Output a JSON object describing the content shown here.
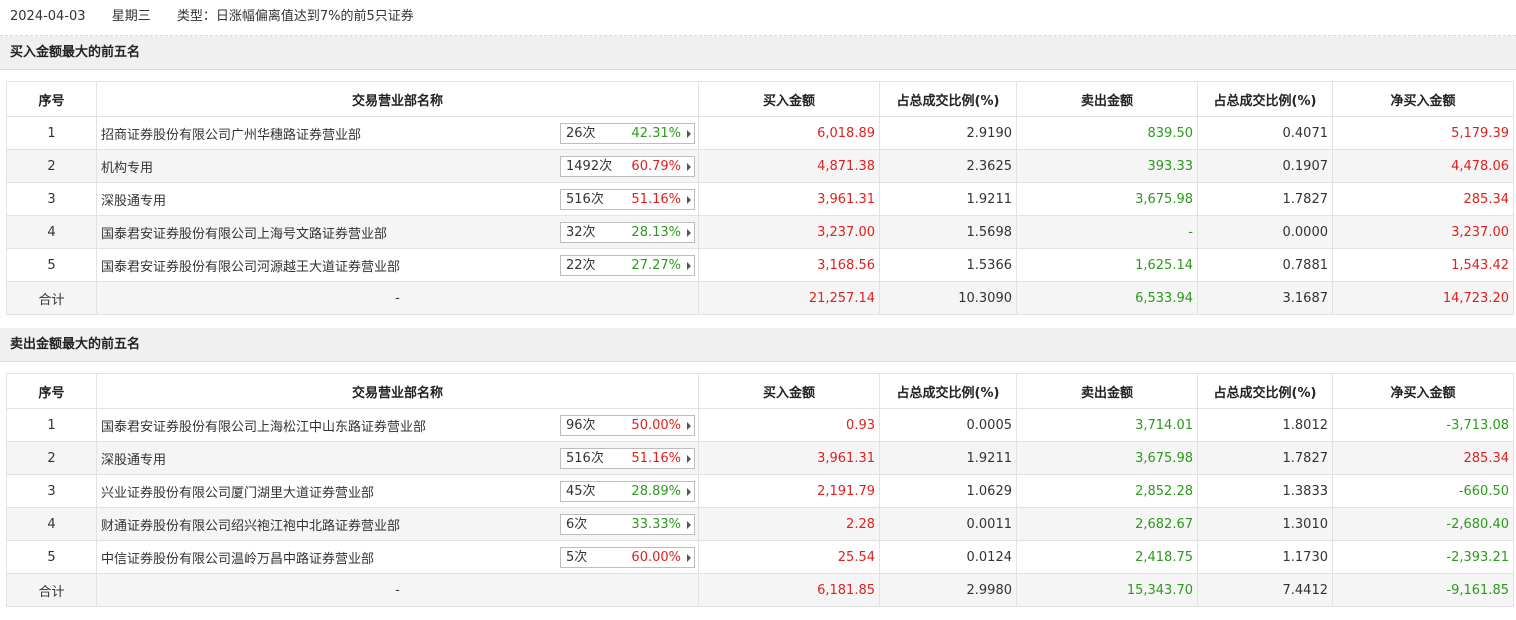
{
  "topbar": {
    "date": "2024-04-03",
    "weekday": "星期三",
    "type": "类型：日涨幅偏离值达到7%的前5只证券"
  },
  "colors": {
    "up": "#e0201f",
    "down": "#2c9a1c"
  },
  "headers": [
    "序号",
    "交易营业部名称",
    "买入金额",
    "占总成交比例(%)",
    "卖出金额",
    "占总成交比例(%)",
    "净买入金额"
  ],
  "buy_section": {
    "title": "买入金额最大的前五名",
    "rows": [
      {
        "idx": "1",
        "name": "招商证券股份有限公司广州华穗路证券营业部",
        "count": "26次",
        "pct": "42.31%",
        "pct_color": "green",
        "buy": "6,018.89",
        "buy_ratio": "2.9190",
        "sell": "839.50",
        "sell_ratio": "0.4071",
        "net": "5,179.39",
        "net_color": "red"
      },
      {
        "idx": "2",
        "name": "机构专用",
        "count": "1492次",
        "pct": "60.79%",
        "pct_color": "red",
        "buy": "4,871.38",
        "buy_ratio": "2.3625",
        "sell": "393.33",
        "sell_ratio": "0.1907",
        "net": "4,478.06",
        "net_color": "red"
      },
      {
        "idx": "3",
        "name": "深股通专用",
        "count": "516次",
        "pct": "51.16%",
        "pct_color": "red",
        "buy": "3,961.31",
        "buy_ratio": "1.9211",
        "sell": "3,675.98",
        "sell_ratio": "1.7827",
        "net": "285.34",
        "net_color": "red"
      },
      {
        "idx": "4",
        "name": "国泰君安证券股份有限公司上海号文路证券营业部",
        "count": "32次",
        "pct": "28.13%",
        "pct_color": "green",
        "buy": "3,237.00",
        "buy_ratio": "1.5698",
        "sell": "-",
        "sell_ratio": "0.0000",
        "net": "3,237.00",
        "net_color": "red"
      },
      {
        "idx": "5",
        "name": "国泰君安证券股份有限公司河源越王大道证券营业部",
        "count": "22次",
        "pct": "27.27%",
        "pct_color": "green",
        "buy": "3,168.56",
        "buy_ratio": "1.5366",
        "sell": "1,625.14",
        "sell_ratio": "0.7881",
        "net": "1,543.42",
        "net_color": "red"
      }
    ],
    "total": {
      "label": "合计",
      "name": "-",
      "buy": "21,257.14",
      "buy_ratio": "10.3090",
      "sell": "6,533.94",
      "sell_ratio": "3.1687",
      "net": "14,723.20",
      "net_color": "red"
    }
  },
  "sell_section": {
    "title": "卖出金额最大的前五名",
    "rows": [
      {
        "idx": "1",
        "name": "国泰君安证券股份有限公司上海松江中山东路证券营业部",
        "count": "96次",
        "pct": "50.00%",
        "pct_color": "red",
        "buy": "0.93",
        "buy_ratio": "0.0005",
        "sell": "3,714.01",
        "sell_ratio": "1.8012",
        "net": "-3,713.08",
        "net_color": "green"
      },
      {
        "idx": "2",
        "name": "深股通专用",
        "count": "516次",
        "pct": "51.16%",
        "pct_color": "red",
        "buy": "3,961.31",
        "buy_ratio": "1.9211",
        "sell": "3,675.98",
        "sell_ratio": "1.7827",
        "net": "285.34",
        "net_color": "red"
      },
      {
        "idx": "3",
        "name": "兴业证券股份有限公司厦门湖里大道证券营业部",
        "count": "45次",
        "pct": "28.89%",
        "pct_color": "green",
        "buy": "2,191.79",
        "buy_ratio": "1.0629",
        "sell": "2,852.28",
        "sell_ratio": "1.3833",
        "net": "-660.50",
        "net_color": "green"
      },
      {
        "idx": "4",
        "name": "财通证券股份有限公司绍兴袍江袍中北路证券营业部",
        "count": "6次",
        "pct": "33.33%",
        "pct_color": "green",
        "buy": "2.28",
        "buy_ratio": "0.0011",
        "sell": "2,682.67",
        "sell_ratio": "1.3010",
        "net": "-2,680.40",
        "net_color": "green"
      },
      {
        "idx": "5",
        "name": "中信证券股份有限公司温岭万昌中路证券营业部",
        "count": "5次",
        "pct": "60.00%",
        "pct_color": "red",
        "buy": "25.54",
        "buy_ratio": "0.0124",
        "sell": "2,418.75",
        "sell_ratio": "1.1730",
        "net": "-2,393.21",
        "net_color": "green"
      }
    ],
    "total": {
      "label": "合计",
      "name": "-",
      "buy": "6,181.85",
      "buy_ratio": "2.9980",
      "sell": "15,343.70",
      "sell_ratio": "7.4412",
      "net": "-9,161.85",
      "net_color": "green"
    }
  }
}
